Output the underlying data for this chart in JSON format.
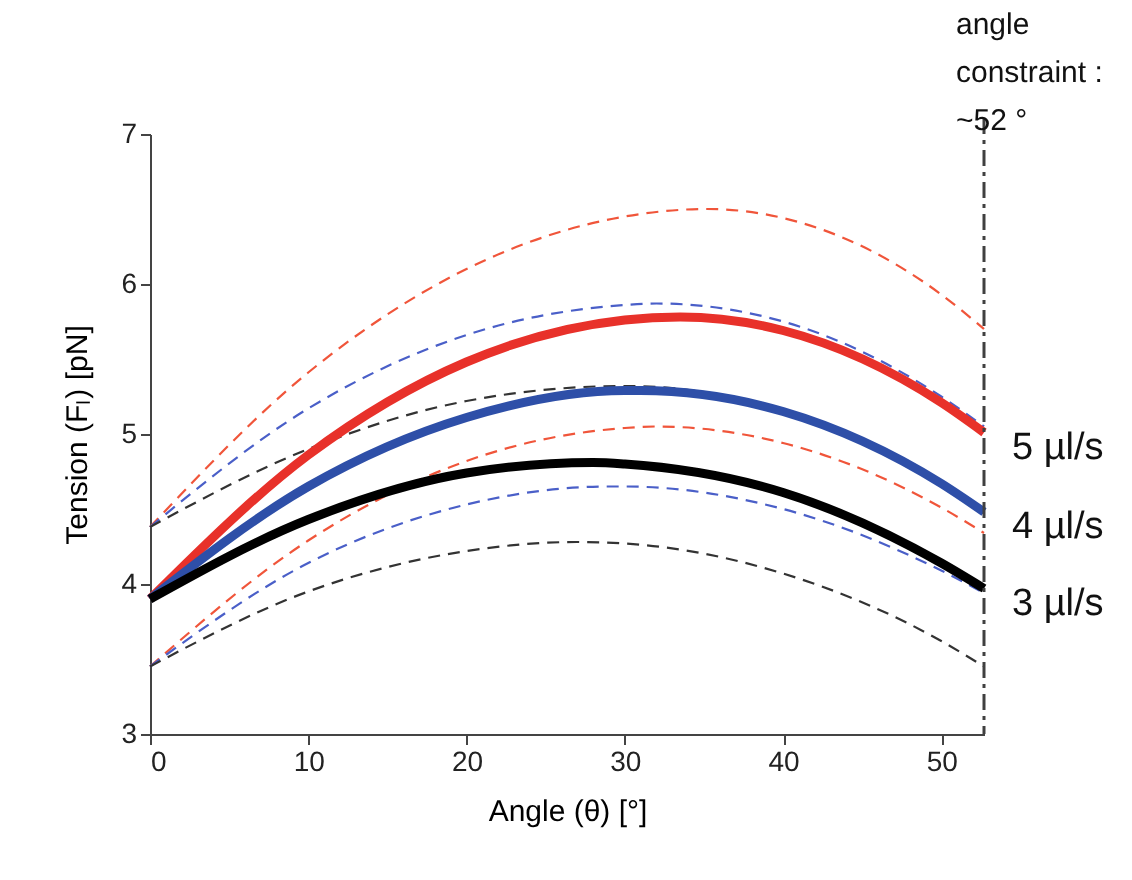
{
  "chart_data": {
    "type": "line",
    "xlabel": "Angle (θ) [°]",
    "ylabel": "Tension (Fₗ) [pN]",
    "xlim": [
      0,
      52.7
    ],
    "ylim": [
      3,
      7
    ],
    "xticks": [
      0,
      10,
      20,
      30,
      40,
      50
    ],
    "yticks": [
      3,
      4,
      5,
      6,
      7
    ],
    "grid": false,
    "marker": "none",
    "ref_lines": [
      {
        "axis": "x",
        "value": 52.7,
        "label": "angle\nconstraint :\n~52 °",
        "color": "#404040",
        "line_style": "dashdot"
      }
    ],
    "series": [
      {
        "color": "#f0553a",
        "line_style": "dashed",
        "x": [
          0,
          10,
          20,
          30,
          35.2,
          40,
          50,
          52.7
        ],
        "values": [
          4.38,
          5.41,
          6.1,
          6.45,
          6.5,
          6.44,
          5.93,
          5.7
        ]
      },
      {
        "color": "#4a5fc8",
        "line_style": "dashed",
        "x": [
          0,
          10,
          20,
          30,
          32,
          40,
          50,
          52.7
        ],
        "values": [
          4.38,
          5.17,
          5.66,
          5.86,
          5.87,
          5.75,
          5.25,
          5.05
        ]
      },
      {
        "color": "#333333",
        "line_style": "dashed",
        "x": [
          0,
          10,
          20,
          30,
          40,
          50,
          52.7
        ],
        "values": [
          4.38,
          4.9,
          5.22,
          5.32,
          5.16,
          4.66,
          4.47
        ]
      },
      {
        "color": "#f0553a",
        "line_style": "dashed",
        "x": [
          0,
          10,
          20,
          30,
          32,
          40,
          50,
          52.7
        ],
        "values": [
          3.45,
          4.29,
          4.82,
          5.04,
          5.05,
          4.94,
          4.51,
          4.34
        ]
      },
      {
        "color": "#4a5fc8",
        "line_style": "dashed",
        "x": [
          0,
          10,
          20,
          29,
          30,
          40,
          50,
          52.7
        ],
        "values": [
          3.45,
          4.14,
          4.53,
          4.65,
          4.65,
          4.5,
          4.09,
          3.94
        ]
      },
      {
        "color": "#333333",
        "line_style": "dashed",
        "x": [
          0,
          10,
          20,
          27,
          30,
          40,
          50,
          52.7
        ],
        "values": [
          3.45,
          3.95,
          4.22,
          4.28,
          4.27,
          4.07,
          3.62,
          3.45
        ]
      },
      {
        "name": "5 µl/s",
        "color": "#e8312a",
        "line_style": "solid",
        "x": [
          0,
          10,
          20,
          30,
          33.5,
          40,
          50,
          52.7
        ],
        "values": [
          3.9,
          4.86,
          5.48,
          5.76,
          5.78,
          5.69,
          5.21,
          5.01
        ]
      },
      {
        "name": "4 µl/s",
        "color": "#2e4fa8",
        "line_style": "solid",
        "x": [
          0,
          10,
          20,
          30,
          31,
          40,
          50,
          52.7
        ],
        "values": [
          3.9,
          4.65,
          5.11,
          5.29,
          5.29,
          5.15,
          4.67,
          4.48
        ]
      },
      {
        "name": "3 µl/s",
        "color": "#000000",
        "line_style": "solid",
        "x": [
          0,
          10,
          20,
          28,
          30,
          40,
          50,
          52.7
        ],
        "values": [
          3.9,
          4.43,
          4.74,
          4.81,
          4.8,
          4.61,
          4.14,
          3.97
        ]
      }
    ]
  }
}
